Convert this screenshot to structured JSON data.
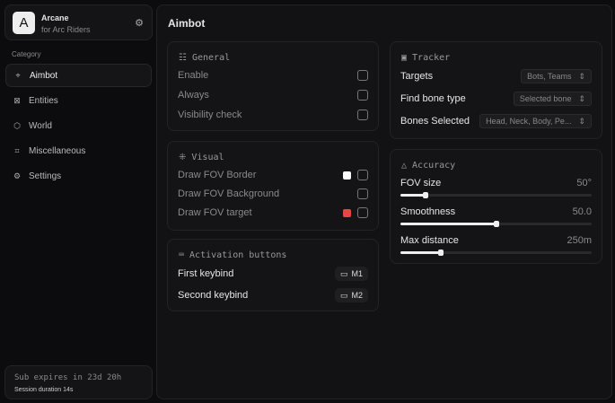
{
  "brand": {
    "logo_letter": "A",
    "name": "Arcane",
    "subtitle": "for Arc Riders"
  },
  "sidebar": {
    "category_label": "Category",
    "items": [
      {
        "label": "Aimbot",
        "icon": "crosshair-icon",
        "active": true
      },
      {
        "label": "Entities",
        "icon": "scan-icon"
      },
      {
        "label": "World",
        "icon": "globe-icon"
      },
      {
        "label": "Miscellaneous",
        "icon": "grid-icon"
      },
      {
        "label": "Settings",
        "icon": "gear-icon"
      }
    ]
  },
  "subscription": {
    "expires": "Sub expires in 23d 20h",
    "session": "Session duration 14s"
  },
  "main": {
    "title": "Aimbot",
    "general": {
      "title": "General",
      "rows": [
        {
          "label": "Enable",
          "checked": false
        },
        {
          "label": "Always",
          "checked": false
        },
        {
          "label": "Visibility check",
          "checked": false
        }
      ]
    },
    "visual": {
      "title": "Visual",
      "rows": [
        {
          "label": "Draw FOV Border",
          "color": "#ffffff",
          "checked": false
        },
        {
          "label": "Draw FOV Background",
          "checked": false
        },
        {
          "label": "Draw FOV target",
          "color": "#e84545",
          "checked": false
        }
      ]
    },
    "activation": {
      "title": "Activation buttons",
      "rows": [
        {
          "label": "First keybind",
          "key": "M1"
        },
        {
          "label": "Second keybind",
          "key": "M2"
        }
      ]
    },
    "tracker": {
      "title": "Tracker",
      "rows": [
        {
          "label": "Targets",
          "value": "Bots, Teams"
        },
        {
          "label": "Find bone type",
          "value": "Selected bone"
        },
        {
          "label": "Bones Selected",
          "value": "Head, Neck, Body, Pe..."
        }
      ]
    },
    "accuracy": {
      "title": "Accuracy",
      "sliders": [
        {
          "label": "FOV size",
          "value": "50°",
          "fill_percent": 13
        },
        {
          "label": "Smoothness",
          "value": "50.0",
          "fill_percent": 50
        },
        {
          "label": "Max distance",
          "value": "250m",
          "fill_percent": 21
        }
      ]
    }
  }
}
